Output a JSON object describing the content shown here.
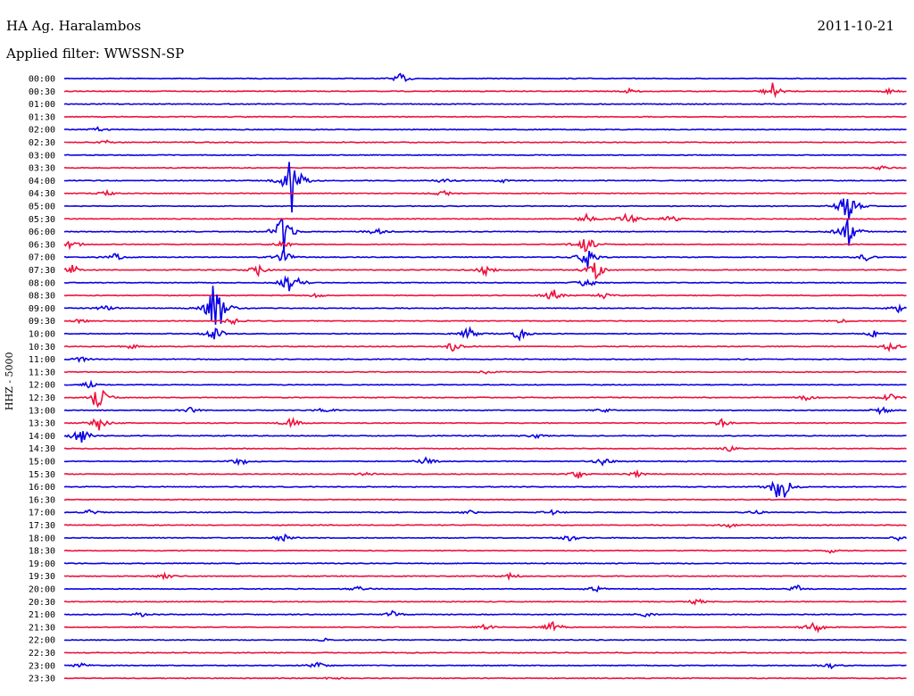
{
  "header": {
    "station": "HA Ag. Haralambos",
    "date": "2011-10-21",
    "filter": "Applied filter: WWSSN-SP"
  },
  "chart_data": {
    "type": "line",
    "title": "HA Ag. Haralambos",
    "subtitle": "Applied filter: WWSSN-SP",
    "ylabel": "HHZ - 5000",
    "xlabel": "",
    "trace_colors": [
      "#0a00e6",
      "#f0103c"
    ],
    "traces": [
      {
        "label": "00:00",
        "events": [
          [
            0.4,
            12
          ]
        ]
      },
      {
        "label": "00:30",
        "events": [
          [
            0.67,
            5
          ],
          [
            0.84,
            20
          ],
          [
            0.98,
            6
          ]
        ]
      },
      {
        "label": "01:00",
        "events": []
      },
      {
        "label": "01:30",
        "events": []
      },
      {
        "label": "02:00",
        "events": [
          [
            0.04,
            5
          ]
        ]
      },
      {
        "label": "02:30",
        "events": [
          [
            0.05,
            4
          ]
        ]
      },
      {
        "label": "03:00",
        "events": []
      },
      {
        "label": "03:30",
        "events": [
          [
            0.97,
            5
          ]
        ]
      },
      {
        "label": "04:00",
        "events": [
          [
            0.27,
            80
          ],
          [
            0.45,
            6
          ],
          [
            0.52,
            4
          ]
        ]
      },
      {
        "label": "04:30",
        "events": [
          [
            0.05,
            6
          ],
          [
            0.45,
            8
          ]
        ]
      },
      {
        "label": "05:00",
        "events": [
          [
            0.93,
            45
          ]
        ]
      },
      {
        "label": "05:30",
        "events": [
          [
            0.62,
            12
          ],
          [
            0.67,
            18
          ],
          [
            0.72,
            10
          ]
        ]
      },
      {
        "label": "06:00",
        "events": [
          [
            0.26,
            60
          ],
          [
            0.37,
            8
          ],
          [
            0.93,
            40
          ]
        ]
      },
      {
        "label": "06:30",
        "events": [
          [
            0.01,
            12
          ],
          [
            0.26,
            10
          ],
          [
            0.62,
            30
          ]
        ]
      },
      {
        "label": "07:00",
        "events": [
          [
            0.06,
            10
          ],
          [
            0.26,
            20
          ],
          [
            0.62,
            30
          ],
          [
            0.95,
            10
          ]
        ]
      },
      {
        "label": "07:30",
        "events": [
          [
            0.01,
            12
          ],
          [
            0.23,
            12
          ],
          [
            0.5,
            12
          ],
          [
            0.63,
            25
          ]
        ]
      },
      {
        "label": "08:00",
        "events": [
          [
            0.27,
            40
          ],
          [
            0.62,
            14
          ]
        ]
      },
      {
        "label": "08:30",
        "events": [
          [
            0.3,
            5
          ],
          [
            0.58,
            15
          ],
          [
            0.64,
            6
          ]
        ]
      },
      {
        "label": "09:00",
        "events": [
          [
            0.05,
            8
          ],
          [
            0.18,
            90
          ],
          [
            0.99,
            8
          ]
        ]
      },
      {
        "label": "09:30",
        "events": [
          [
            0.02,
            6
          ],
          [
            0.2,
            8
          ],
          [
            0.92,
            6
          ]
        ]
      },
      {
        "label": "10:00",
        "events": [
          [
            0.18,
            20
          ],
          [
            0.48,
            15
          ],
          [
            0.54,
            15
          ],
          [
            0.96,
            8
          ]
        ]
      },
      {
        "label": "10:30",
        "events": [
          [
            0.08,
            6
          ],
          [
            0.46,
            12
          ],
          [
            0.98,
            12
          ]
        ]
      },
      {
        "label": "11:00",
        "events": [
          [
            0.02,
            6
          ]
        ]
      },
      {
        "label": "11:30",
        "events": [
          [
            0.5,
            4
          ]
        ]
      },
      {
        "label": "12:00",
        "events": [
          [
            0.03,
            8
          ]
        ]
      },
      {
        "label": "12:30",
        "events": [
          [
            0.04,
            40
          ],
          [
            0.88,
            10
          ],
          [
            0.98,
            10
          ]
        ]
      },
      {
        "label": "13:00",
        "events": [
          [
            0.15,
            8
          ],
          [
            0.31,
            8
          ],
          [
            0.64,
            6
          ],
          [
            0.97,
            10
          ]
        ]
      },
      {
        "label": "13:30",
        "events": [
          [
            0.04,
            20
          ],
          [
            0.27,
            12
          ],
          [
            0.78,
            8
          ]
        ]
      },
      {
        "label": "14:00",
        "events": [
          [
            0.02,
            25
          ],
          [
            0.56,
            6
          ]
        ]
      },
      {
        "label": "14:30",
        "events": [
          [
            0.79,
            6
          ]
        ]
      },
      {
        "label": "15:00",
        "events": [
          [
            0.21,
            10
          ],
          [
            0.43,
            10
          ],
          [
            0.64,
            10
          ]
        ]
      },
      {
        "label": "15:30",
        "events": [
          [
            0.36,
            6
          ],
          [
            0.61,
            10
          ],
          [
            0.68,
            8
          ]
        ]
      },
      {
        "label": "16:00",
        "events": [
          [
            0.85,
            50
          ]
        ]
      },
      {
        "label": "16:30",
        "events": []
      },
      {
        "label": "17:00",
        "events": [
          [
            0.03,
            6
          ],
          [
            0.48,
            6
          ],
          [
            0.58,
            8
          ],
          [
            0.82,
            6
          ]
        ]
      },
      {
        "label": "17:30",
        "events": [
          [
            0.79,
            6
          ]
        ]
      },
      {
        "label": "18:00",
        "events": [
          [
            0.26,
            10
          ],
          [
            0.6,
            8
          ],
          [
            0.99,
            5
          ]
        ]
      },
      {
        "label": "18:30",
        "events": [
          [
            0.91,
            5
          ]
        ]
      },
      {
        "label": "19:00",
        "events": []
      },
      {
        "label": "19:30",
        "events": [
          [
            0.12,
            6
          ],
          [
            0.53,
            8
          ]
        ]
      },
      {
        "label": "20:00",
        "events": [
          [
            0.35,
            8
          ],
          [
            0.63,
            8
          ],
          [
            0.87,
            8
          ]
        ]
      },
      {
        "label": "20:30",
        "events": [
          [
            0.75,
            8
          ]
        ]
      },
      {
        "label": "21:00",
        "events": [
          [
            0.09,
            6
          ],
          [
            0.39,
            8
          ],
          [
            0.69,
            5
          ]
        ]
      },
      {
        "label": "21:30",
        "events": [
          [
            0.5,
            8
          ],
          [
            0.58,
            15
          ],
          [
            0.89,
            18
          ]
        ]
      },
      {
        "label": "22:00",
        "events": [
          [
            0.31,
            4
          ]
        ]
      },
      {
        "label": "22:30",
        "events": []
      },
      {
        "label": "23:00",
        "events": [
          [
            0.02,
            6
          ],
          [
            0.3,
            8
          ],
          [
            0.91,
            8
          ]
        ]
      },
      {
        "label": "23:30",
        "events": [
          [
            0.32,
            4
          ]
        ]
      }
    ]
  }
}
